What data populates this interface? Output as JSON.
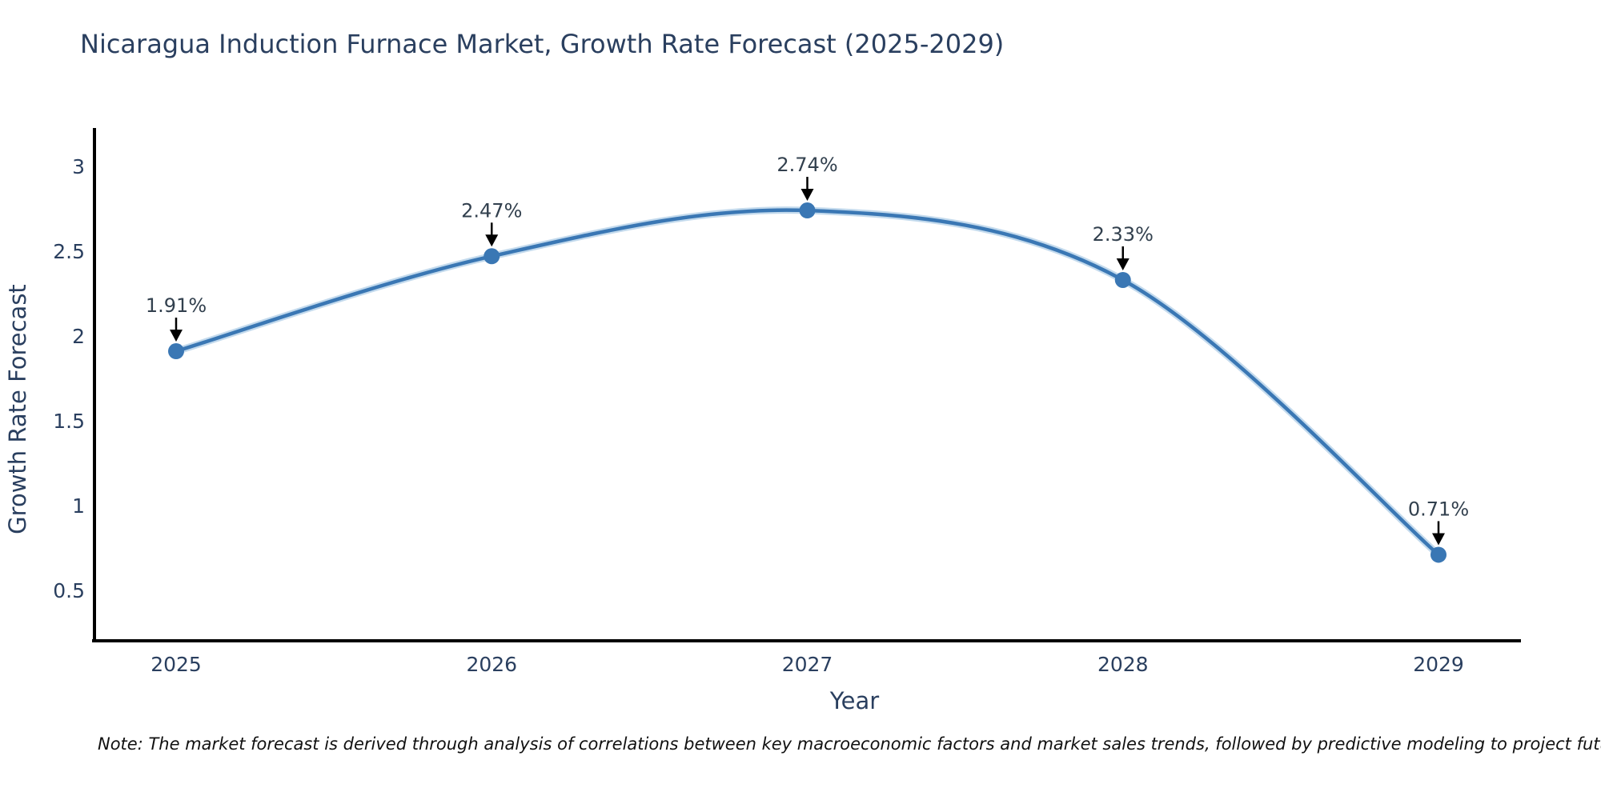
{
  "title": "Nicaragua Induction Furnace Market, Growth Rate Forecast (2025-2029)",
  "note": "Note: The market forecast is derived through analysis of correlations between key macroeconomic factors and market sales trends, followed by predictive modeling to project future sales",
  "chart_data": {
    "type": "line",
    "title": "Nicaragua Induction Furnace Market, Growth Rate Forecast (2025-2029)",
    "xlabel": "Year",
    "ylabel": "Growth Rate Forecast",
    "categories": [
      "2025",
      "2026",
      "2027",
      "2028",
      "2029"
    ],
    "values": [
      1.91,
      2.47,
      2.74,
      2.33,
      0.71
    ],
    "point_labels": [
      "1.91%",
      "2.47%",
      "2.74%",
      "2.33%",
      "0.71%"
    ],
    "yticks": [
      3,
      2.5,
      2,
      1.5,
      1,
      0.5
    ],
    "ylim": [
      0.198,
      3.226
    ],
    "line_shape": "spline",
    "grid": false,
    "legend": "none",
    "colors": {
      "line": "#3a77b4",
      "line_halo": "#b9d3ea",
      "marker": "#3a77b4",
      "axis": "#000000",
      "tick_text": "#2a3f5f",
      "axis_title_text": "#2a3f5f",
      "annotation_text": "#32404e",
      "arrow": "#000000",
      "background": "#ffffff"
    }
  }
}
